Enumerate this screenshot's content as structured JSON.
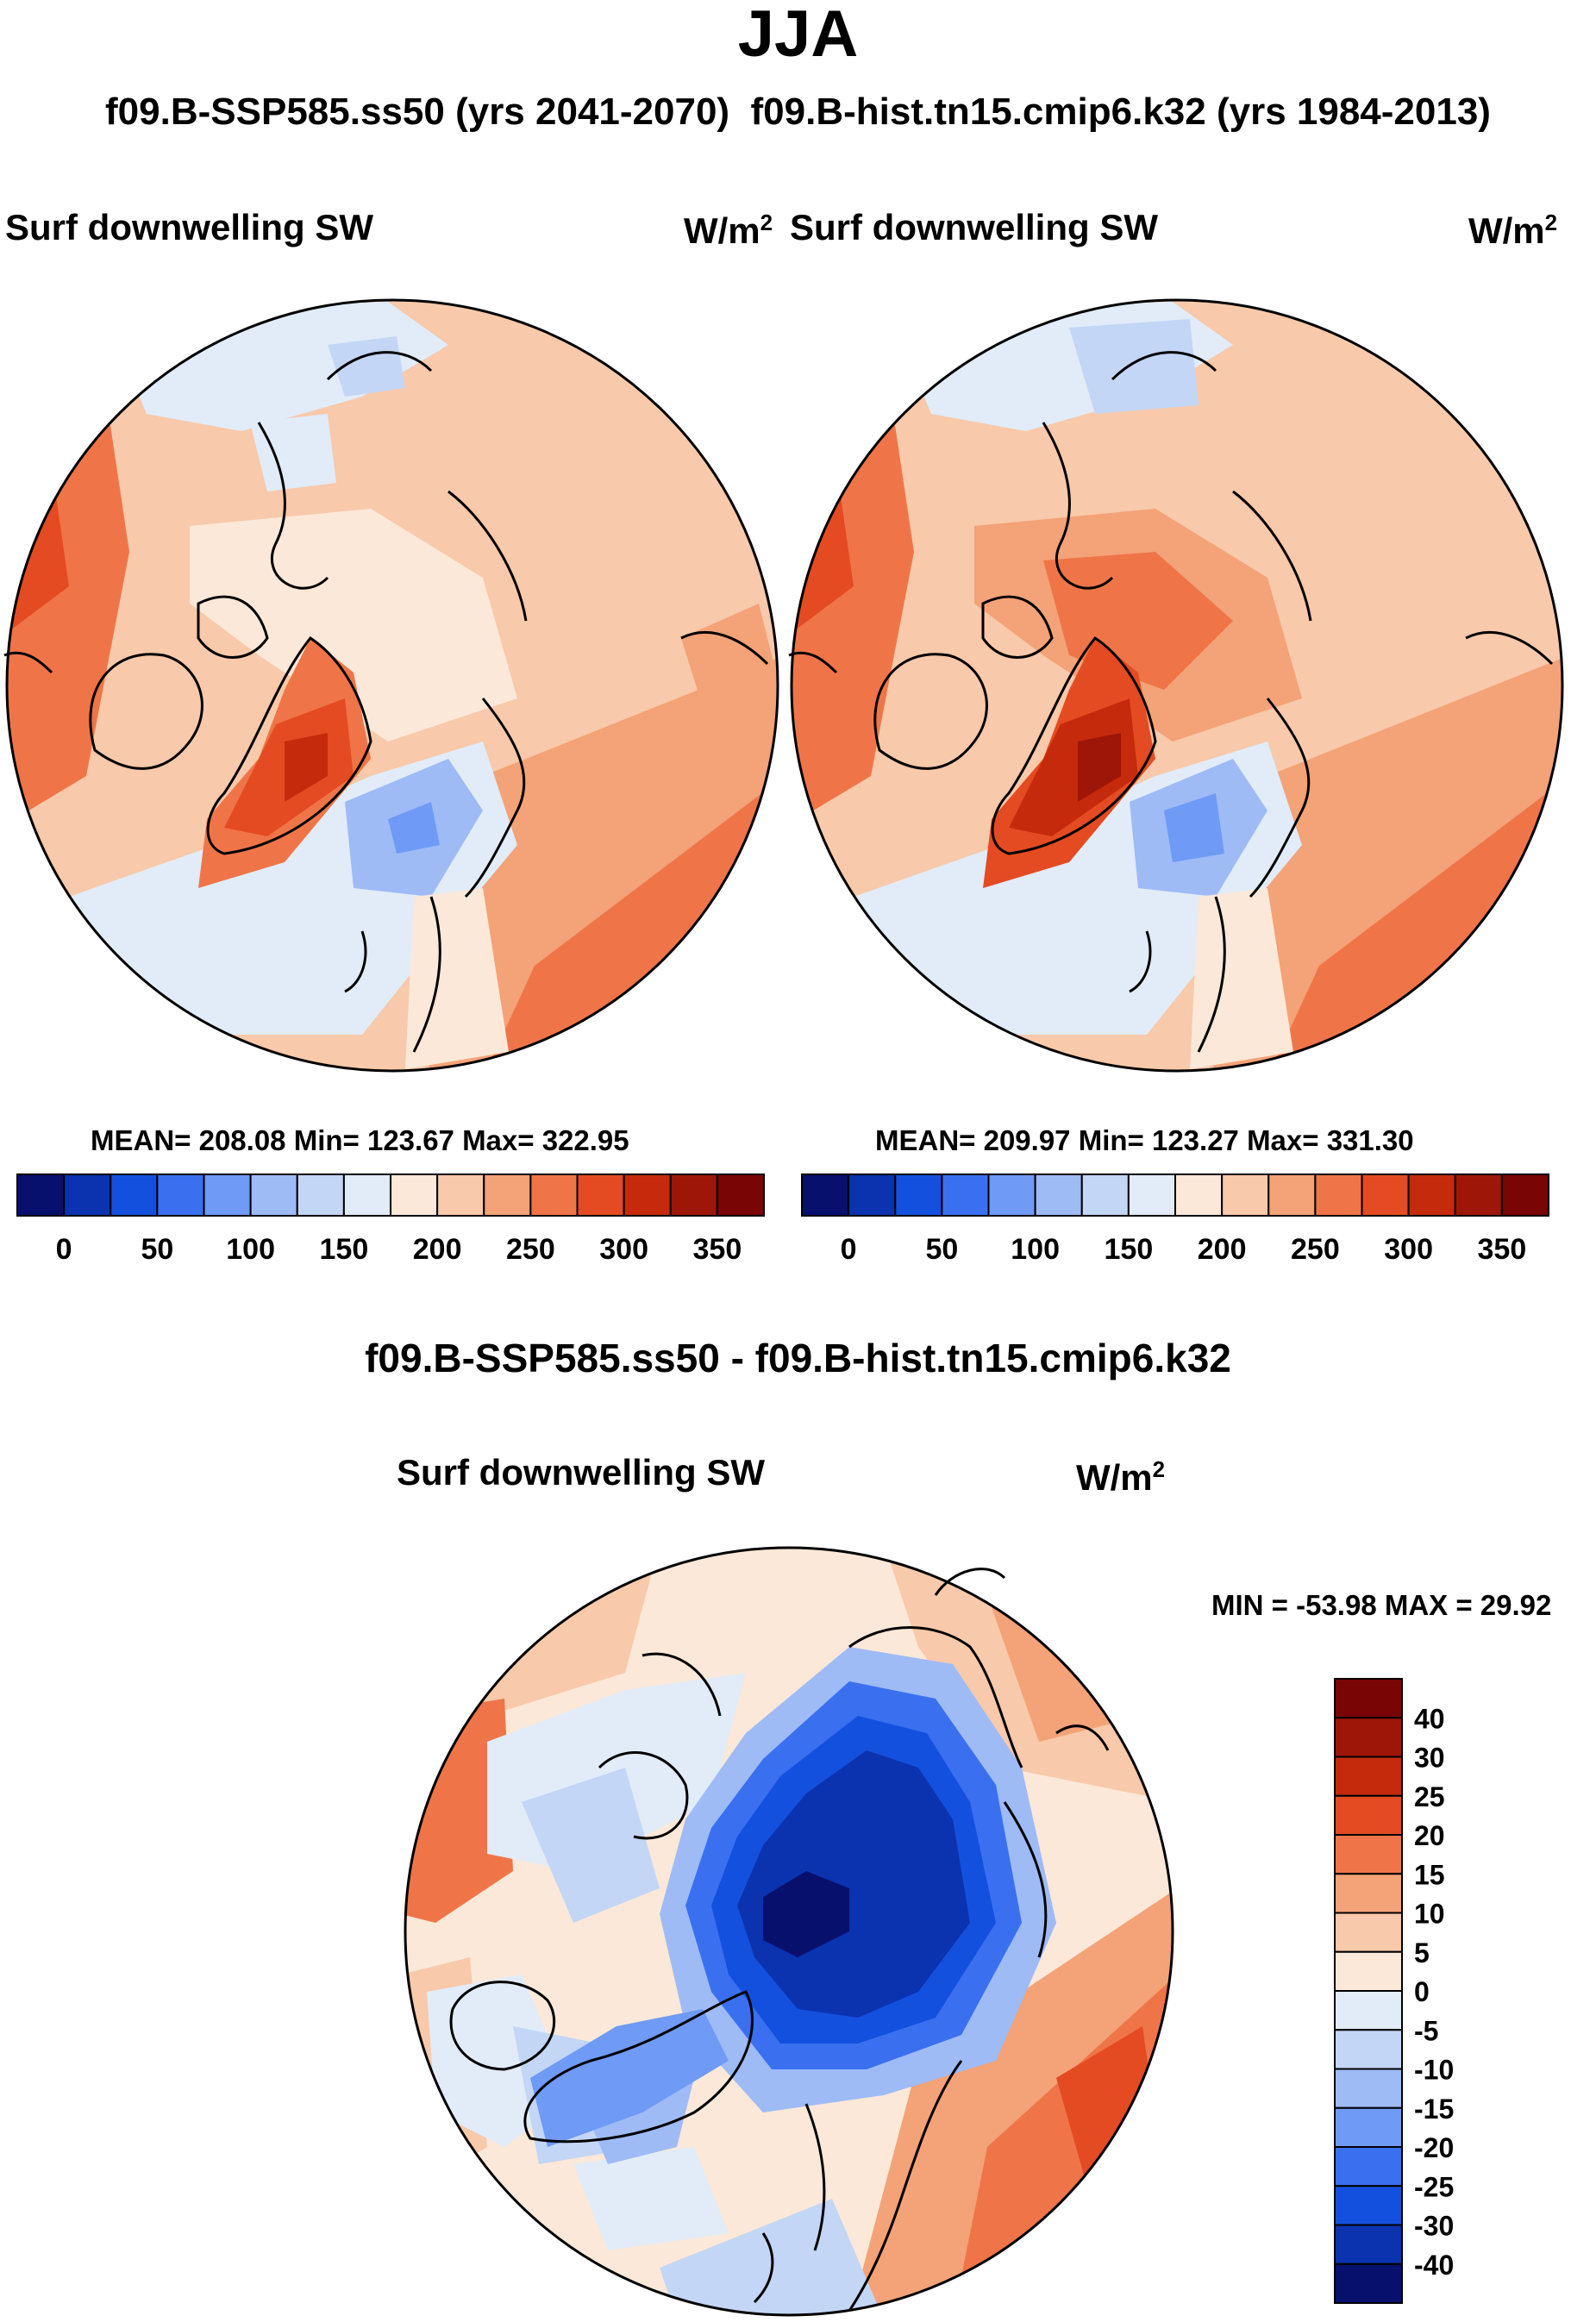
{
  "figure": {
    "season": "JJA",
    "header_left": "f09.B-SSP585.ss50 (yrs 2041-2070)",
    "header_right": "f09.B-hist.tn15.cmip6.k32 (yrs 1984-2013)",
    "diff_title": "f09.B-SSP585.ss50 - f09.B-hist.tn15.cmip6.k32"
  },
  "panels": [
    {
      "title": "Surf downwelling SW",
      "units_base": "W/m",
      "units_exp": "2",
      "stats": {
        "mean": "208.08",
        "min": "123.67",
        "max": "322.95",
        "text": "MEAN= 208.08  Min= 123.67  Max= 322.95"
      }
    },
    {
      "title": "Surf downwelling SW",
      "units_base": "W/m",
      "units_exp": "2",
      "stats": {
        "mean": "209.97",
        "min": "123.27",
        "max": "331.30",
        "text": "MEAN= 209.97  Min= 123.27  Max= 331.30"
      }
    },
    {
      "title": "Surf downwelling SW",
      "units_base": "W/m",
      "units_exp": "2",
      "stats": {
        "min": "-53.98",
        "max": "29.92",
        "text": "MIN = -53.98 MAX =  29.92"
      }
    }
  ],
  "chart_data": [
    {
      "type": "heatmap",
      "projection": "polar-stereographic-north",
      "title": "Surf downwelling SW",
      "units": "W/m2",
      "colorbar": {
        "orientation": "horizontal",
        "levels": [
          0,
          25,
          50,
          75,
          100,
          125,
          150,
          175,
          200,
          225,
          250,
          275,
          300,
          325,
          350
        ],
        "tick_labels": [
          "0",
          "50",
          "100",
          "150",
          "200",
          "250",
          "300",
          "350"
        ],
        "colors": [
          "#08106e",
          "#0b33b0",
          "#1450de",
          "#3a70f0",
          "#6f9af5",
          "#9ebbf6",
          "#c3d6f6",
          "#e1ecf8",
          "#fbe8d8",
          "#f8c9aa",
          "#f4a277",
          "#ef7548",
          "#e44b22",
          "#c52a0c",
          "#9e1608",
          "#7a0505"
        ]
      }
    },
    {
      "type": "heatmap",
      "projection": "polar-stereographic-north",
      "title": "Surf downwelling SW",
      "units": "W/m2",
      "colorbar": {
        "orientation": "horizontal",
        "levels": [
          0,
          25,
          50,
          75,
          100,
          125,
          150,
          175,
          200,
          225,
          250,
          275,
          300,
          325,
          350
        ],
        "tick_labels": [
          "0",
          "50",
          "100",
          "150",
          "200",
          "250",
          "300",
          "350"
        ],
        "colors": [
          "#08106e",
          "#0b33b0",
          "#1450de",
          "#3a70f0",
          "#6f9af5",
          "#9ebbf6",
          "#c3d6f6",
          "#e1ecf8",
          "#fbe8d8",
          "#f8c9aa",
          "#f4a277",
          "#ef7548",
          "#e44b22",
          "#c52a0c",
          "#9e1608",
          "#7a0505"
        ]
      }
    },
    {
      "type": "heatmap",
      "projection": "polar-stereographic-north",
      "title": "Surf downwelling SW",
      "units": "W/m2",
      "colorbar": {
        "orientation": "vertical",
        "tick_labels": [
          "40",
          "30",
          "25",
          "20",
          "15",
          "10",
          "5",
          "0",
          "-5",
          "-10",
          "-15",
          "-20",
          "-25",
          "-30",
          "-40"
        ],
        "colors": [
          "#7a0505",
          "#9e1608",
          "#c52a0c",
          "#e44b22",
          "#ef7548",
          "#f4a277",
          "#f8c9aa",
          "#fbe8d8",
          "#e1ecf8",
          "#c3d6f6",
          "#9ebbf6",
          "#6f9af5",
          "#3a70f0",
          "#1450de",
          "#0b33b0",
          "#08106e"
        ]
      }
    }
  ]
}
